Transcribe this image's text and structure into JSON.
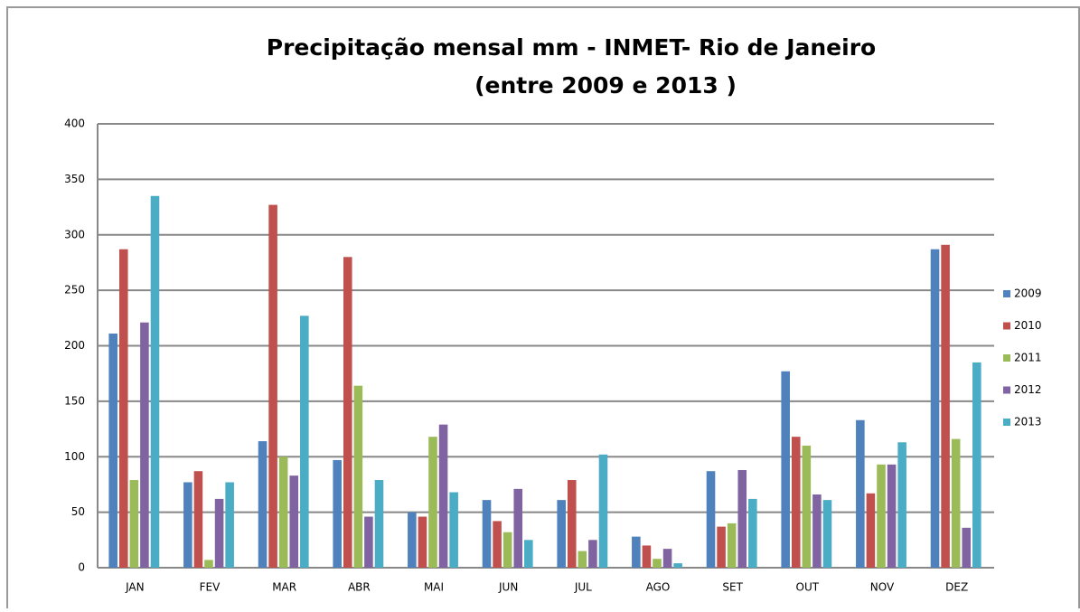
{
  "chart_data": {
    "type": "bar",
    "title": "Precipitação mensal mm -   INMET- Rio de Janeiro",
    "subtitle": "(entre 2009 e 2013 )",
    "categories": [
      "JAN",
      "FEV",
      "MAR",
      "ABR",
      "MAI",
      "JUN",
      "JUL",
      "AGO",
      "SET",
      "OUT",
      "NOV",
      "DEZ"
    ],
    "series": [
      {
        "name": "2009",
        "color": "#4f81bd",
        "values": [
          211,
          77,
          114,
          97,
          50,
          61,
          61,
          28,
          87,
          177,
          133,
          287
        ]
      },
      {
        "name": "2010",
        "color": "#c0504d",
        "values": [
          287,
          87,
          327,
          280,
          46,
          42,
          79,
          20,
          37,
          118,
          67,
          291
        ]
      },
      {
        "name": "2011",
        "color": "#9bbb59",
        "values": [
          79,
          7,
          100,
          164,
          118,
          32,
          15,
          8,
          40,
          110,
          93,
          116
        ]
      },
      {
        "name": "2012",
        "color": "#8064a2",
        "values": [
          221,
          62,
          83,
          46,
          129,
          71,
          25,
          17,
          88,
          66,
          93,
          36
        ]
      },
      {
        "name": "2013",
        "color": "#4bacc6",
        "values": [
          335,
          77,
          227,
          79,
          68,
          25,
          102,
          4,
          62,
          61,
          113,
          185
        ]
      }
    ],
    "ylim": [
      0,
      400
    ],
    "yticks": [
      0,
      50,
      100,
      150,
      200,
      250,
      300,
      350,
      400
    ],
    "grid": true,
    "legend": "right"
  }
}
